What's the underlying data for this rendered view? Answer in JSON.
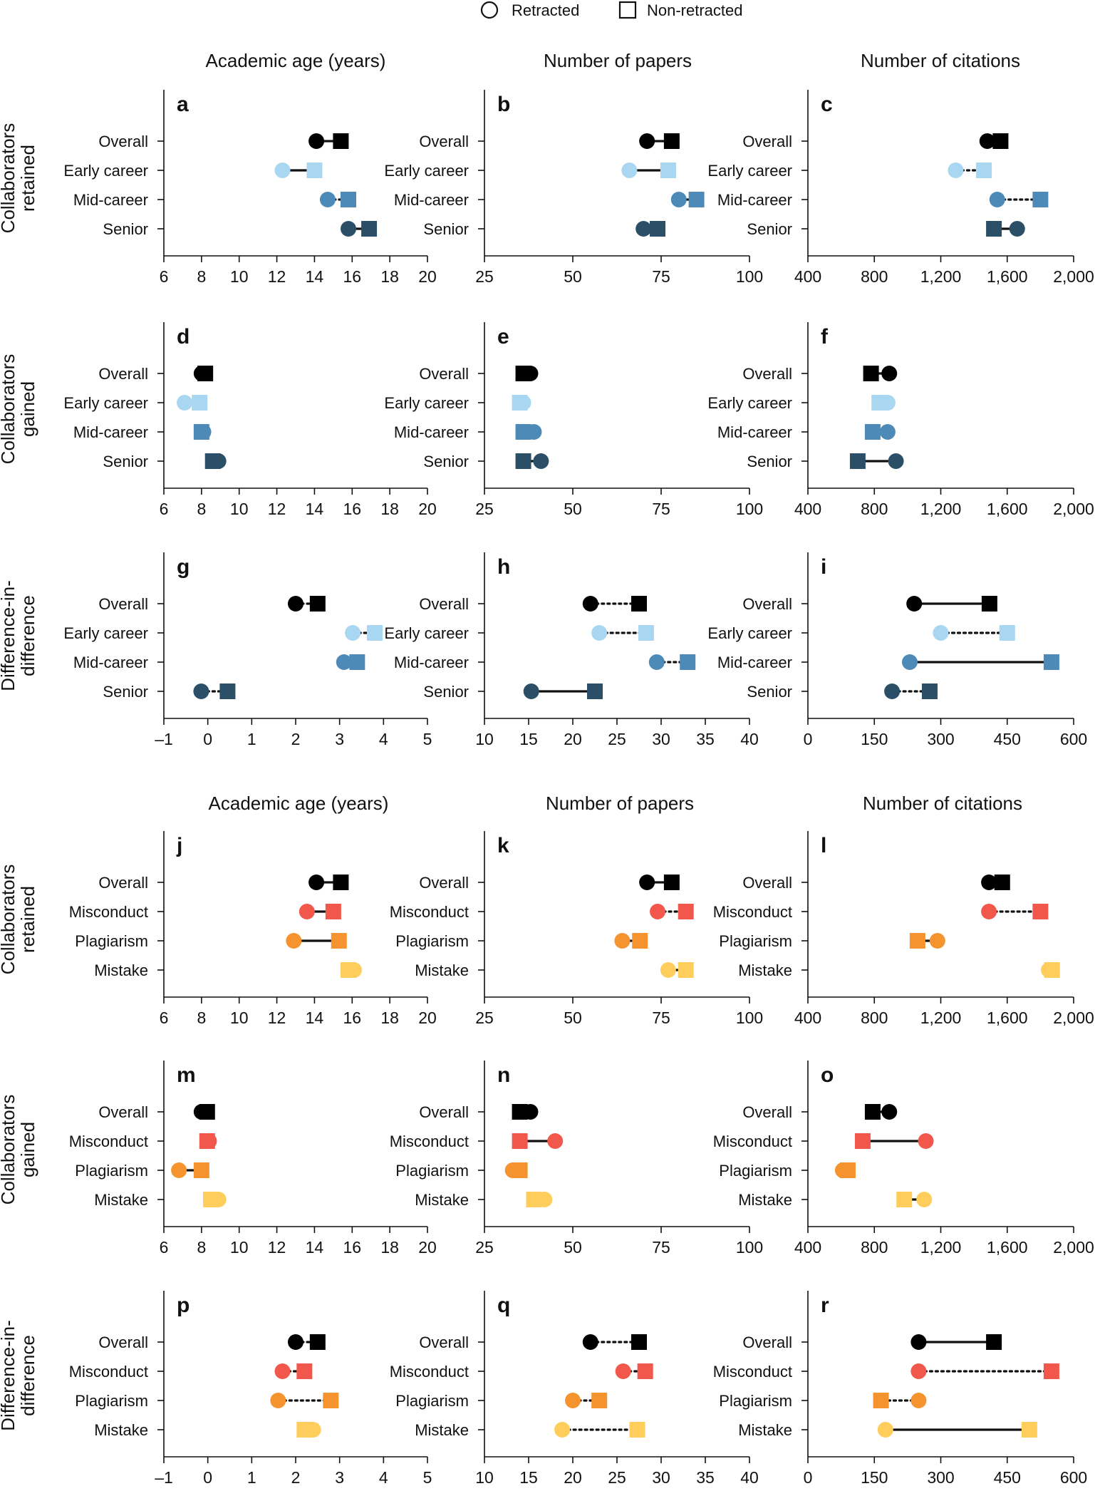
{
  "legend": {
    "retracted": "Retracted",
    "non_retracted": "Non-retracted"
  },
  "colors": {
    "overall": "#000000",
    "early_career": "#a9d6f0",
    "mid_career": "#4e8ab8",
    "senior": "#2a4f66",
    "misconduct": "#f2574b",
    "plagiarism": "#f5932f",
    "mistake": "#ffcd5c"
  },
  "column_titles": [
    "Academic age (years)",
    "Number of papers",
    "Number of citations"
  ],
  "row_titles": [
    [
      "Collaborators",
      "retained"
    ],
    [
      "Collaborators",
      "gained"
    ],
    [
      "Difference-in-",
      "difference"
    ],
    [
      "Collaborators",
      "retained"
    ],
    [
      "Collaborators",
      "gained"
    ],
    [
      "Difference-in-",
      "difference"
    ]
  ],
  "panel_labels": [
    "a",
    "b",
    "c",
    "d",
    "e",
    "f",
    "g",
    "h",
    "i",
    "j",
    "k",
    "l",
    "m",
    "n",
    "o",
    "p",
    "q",
    "r"
  ],
  "chart_data": [
    {
      "panel": "a",
      "type": "scatter",
      "categories": [
        "Overall",
        "Early career",
        "Mid-career",
        "Senior"
      ],
      "series": [
        {
          "name": "Retracted",
          "values": [
            14.1,
            12.3,
            14.7,
            15.8
          ]
        },
        {
          "name": "Non-retracted",
          "values": [
            15.4,
            14.0,
            15.8,
            16.9
          ]
        }
      ],
      "xlim": [
        6,
        20
      ],
      "xticks": [
        6,
        8,
        10,
        12,
        14,
        16,
        18,
        20
      ],
      "xticklabels": [
        "6",
        "8",
        "10",
        "12",
        "14",
        "16",
        "18",
        "20"
      ],
      "line_styles": [
        "solid",
        "solid",
        "dotted",
        "solid"
      ]
    },
    {
      "panel": "b",
      "type": "scatter",
      "categories": [
        "Overall",
        "Early career",
        "Mid-career",
        "Senior"
      ],
      "series": [
        {
          "name": "Retracted",
          "values": [
            71,
            66,
            80,
            70
          ]
        },
        {
          "name": "Non-retracted",
          "values": [
            78,
            77,
            85,
            74
          ]
        }
      ],
      "xlim": [
        25,
        100
      ],
      "xticks": [
        25,
        50,
        75,
        100
      ],
      "xticklabels": [
        "25",
        "50",
        "75",
        "100"
      ],
      "line_styles": [
        "solid",
        "solid",
        "solid",
        "solid"
      ]
    },
    {
      "panel": "c",
      "type": "scatter",
      "categories": [
        "Overall",
        "Early career",
        "Mid-career",
        "Senior"
      ],
      "series": [
        {
          "name": "Retracted",
          "values": [
            1480,
            1290,
            1540,
            1660
          ]
        },
        {
          "name": "Non-retracted",
          "values": [
            1560,
            1460,
            1800,
            1520
          ]
        }
      ],
      "xlim": [
        400,
        2000
      ],
      "xticks": [
        400,
        800,
        1200,
        1600,
        2000
      ],
      "xticklabels": [
        "400",
        "800",
        "1,200",
        "1,600",
        "2,000"
      ],
      "line_styles": [
        "solid",
        "dotted",
        "dotted",
        "solid"
      ]
    },
    {
      "panel": "d",
      "type": "scatter",
      "categories": [
        "Overall",
        "Early career",
        "Mid-career",
        "Senior"
      ],
      "series": [
        {
          "name": "Retracted",
          "values": [
            8.0,
            7.1,
            8.1,
            8.9
          ]
        },
        {
          "name": "Non-retracted",
          "values": [
            8.2,
            7.9,
            8.0,
            8.6
          ]
        }
      ],
      "xlim": [
        6,
        20
      ],
      "xticks": [
        6,
        8,
        10,
        12,
        14,
        16,
        18,
        20
      ],
      "xticklabels": [
        "6",
        "8",
        "10",
        "12",
        "14",
        "16",
        "18",
        "20"
      ],
      "line_styles": [
        "solid",
        "solid",
        "solid",
        "solid"
      ]
    },
    {
      "panel": "e",
      "type": "scatter",
      "categories": [
        "Overall",
        "Early career",
        "Mid-career",
        "Senior"
      ],
      "series": [
        {
          "name": "Retracted",
          "values": [
            38,
            36,
            39,
            41
          ]
        },
        {
          "name": "Non-retracted",
          "values": [
            36,
            35,
            36,
            36
          ]
        }
      ],
      "xlim": [
        25,
        100
      ],
      "xticks": [
        25,
        50,
        75,
        100
      ],
      "xticklabels": [
        "25",
        "50",
        "75",
        "100"
      ],
      "line_styles": [
        "solid",
        "solid",
        "solid",
        "solid"
      ]
    },
    {
      "panel": "f",
      "type": "scatter",
      "categories": [
        "Overall",
        "Early career",
        "Mid-career",
        "Senior"
      ],
      "series": [
        {
          "name": "Retracted",
          "values": [
            890,
            880,
            880,
            930
          ]
        },
        {
          "name": "Non-retracted",
          "values": [
            780,
            830,
            790,
            700
          ]
        }
      ],
      "xlim": [
        400,
        2000
      ],
      "xticks": [
        400,
        800,
        1200,
        1600,
        2000
      ],
      "xticklabels": [
        "400",
        "800",
        "1,200",
        "1,600",
        "2,000"
      ],
      "line_styles": [
        "solid",
        "solid",
        "solid",
        "solid"
      ]
    },
    {
      "panel": "g",
      "type": "scatter",
      "categories": [
        "Overall",
        "Early career",
        "Mid-career",
        "Senior"
      ],
      "series": [
        {
          "name": "Retracted",
          "values": [
            2.0,
            3.3,
            3.1,
            -0.15
          ]
        },
        {
          "name": "Non-retracted",
          "values": [
            2.5,
            3.8,
            3.4,
            0.45
          ]
        }
      ],
      "xlim": [
        -1,
        5
      ],
      "xticks": [
        -1,
        0,
        1,
        2,
        3,
        4,
        5
      ],
      "xticklabels": [
        "–1",
        "0",
        "1",
        "2",
        "3",
        "4",
        "5"
      ],
      "line_styles": [
        "dotted",
        "dotted",
        "solid",
        "dotted"
      ]
    },
    {
      "panel": "h",
      "type": "scatter",
      "categories": [
        "Overall",
        "Early career",
        "Mid-career",
        "Senior"
      ],
      "series": [
        {
          "name": "Retracted",
          "values": [
            22,
            23,
            29.5,
            15.3
          ]
        },
        {
          "name": "Non-retracted",
          "values": [
            27.5,
            28.3,
            33,
            22.5
          ]
        }
      ],
      "xlim": [
        10,
        40
      ],
      "xticks": [
        10,
        15,
        20,
        25,
        30,
        35,
        40
      ],
      "xticklabels": [
        "10",
        "15",
        "20",
        "25",
        "30",
        "35",
        "40"
      ],
      "line_styles": [
        "dotted",
        "dotted",
        "dotted",
        "solid"
      ]
    },
    {
      "panel": "i",
      "type": "scatter",
      "categories": [
        "Overall",
        "Early career",
        "Mid-career",
        "Senior"
      ],
      "series": [
        {
          "name": "Retracted",
          "values": [
            240,
            300,
            230,
            190
          ]
        },
        {
          "name": "Non-retracted",
          "values": [
            410,
            450,
            550,
            275
          ]
        }
      ],
      "xlim": [
        0,
        600
      ],
      "xticks": [
        0,
        150,
        300,
        450,
        600
      ],
      "xticklabels": [
        "0",
        "150",
        "300",
        "450",
        "600"
      ],
      "line_styles": [
        "solid",
        "dotted",
        "solid",
        "dotted"
      ]
    },
    {
      "panel": "j",
      "type": "scatter",
      "categories": [
        "Overall",
        "Misconduct",
        "Plagiarism",
        "Mistake"
      ],
      "series": [
        {
          "name": "Retracted",
          "values": [
            14.1,
            13.6,
            12.9,
            16.1
          ]
        },
        {
          "name": "Non-retracted",
          "values": [
            15.4,
            15.0,
            15.3,
            15.8
          ]
        }
      ],
      "xlim": [
        6,
        20
      ],
      "xticks": [
        6,
        8,
        10,
        12,
        14,
        16,
        18,
        20
      ],
      "xticklabels": [
        "6",
        "8",
        "10",
        "12",
        "14",
        "16",
        "18",
        "20"
      ],
      "line_styles": [
        "solid",
        "solid",
        "solid",
        "solid"
      ]
    },
    {
      "panel": "k",
      "type": "scatter",
      "categories": [
        "Overall",
        "Misconduct",
        "Plagiarism",
        "Mistake"
      ],
      "series": [
        {
          "name": "Retracted",
          "values": [
            71,
            74,
            64,
            77
          ]
        },
        {
          "name": "Non-retracted",
          "values": [
            78,
            82,
            69,
            82
          ]
        }
      ],
      "xlim": [
        25,
        100
      ],
      "xticks": [
        25,
        50,
        75,
        100
      ],
      "xticklabels": [
        "25",
        "50",
        "75",
        "100"
      ],
      "line_styles": [
        "solid",
        "dotted",
        "solid",
        "solid"
      ]
    },
    {
      "panel": "l",
      "type": "scatter",
      "categories": [
        "Overall",
        "Misconduct",
        "Plagiarism",
        "Mistake"
      ],
      "series": [
        {
          "name": "Retracted",
          "values": [
            1490,
            1490,
            1180,
            1850
          ]
        },
        {
          "name": "Non-retracted",
          "values": [
            1570,
            1800,
            1060,
            1870
          ]
        }
      ],
      "xlim": [
        400,
        2000
      ],
      "xticks": [
        400,
        800,
        1200,
        1600,
        2000
      ],
      "xticklabels": [
        "400",
        "800",
        "1,200",
        "1,600",
        "2,000"
      ],
      "line_styles": [
        "solid",
        "dotted",
        "solid",
        "solid"
      ]
    },
    {
      "panel": "m",
      "type": "scatter",
      "categories": [
        "Overall",
        "Misconduct",
        "Plagiarism",
        "Mistake"
      ],
      "series": [
        {
          "name": "Retracted",
          "values": [
            8.0,
            8.4,
            6.8,
            8.9
          ]
        },
        {
          "name": "Non-retracted",
          "values": [
            8.3,
            8.3,
            8.0,
            8.5
          ]
        }
      ],
      "xlim": [
        6,
        20
      ],
      "xticks": [
        6,
        8,
        10,
        12,
        14,
        16,
        18,
        20
      ],
      "xticklabels": [
        "6",
        "8",
        "10",
        "12",
        "14",
        "16",
        "18",
        "20"
      ],
      "line_styles": [
        "solid",
        "solid",
        "solid",
        "solid"
      ]
    },
    {
      "panel": "n",
      "type": "scatter",
      "categories": [
        "Overall",
        "Misconduct",
        "Plagiarism",
        "Mistake"
      ],
      "series": [
        {
          "name": "Retracted",
          "values": [
            38,
            45,
            33,
            42
          ]
        },
        {
          "name": "Non-retracted",
          "values": [
            35,
            35,
            35,
            39
          ]
        }
      ],
      "xlim": [
        25,
        100
      ],
      "xticks": [
        25,
        50,
        75,
        100
      ],
      "xticklabels": [
        "25",
        "50",
        "75",
        "100"
      ],
      "line_styles": [
        "solid",
        "solid",
        "solid",
        "solid"
      ]
    },
    {
      "panel": "o",
      "type": "scatter",
      "categories": [
        "Overall",
        "Misconduct",
        "Plagiarism",
        "Mistake"
      ],
      "series": [
        {
          "name": "Retracted",
          "values": [
            890,
            1110,
            610,
            1100
          ]
        },
        {
          "name": "Non-retracted",
          "values": [
            790,
            730,
            640,
            980
          ]
        }
      ],
      "xlim": [
        400,
        2000
      ],
      "xticks": [
        400,
        800,
        1200,
        1600,
        2000
      ],
      "xticklabels": [
        "400",
        "800",
        "1,200",
        "1,600",
        "2,000"
      ],
      "line_styles": [
        "solid",
        "solid",
        "solid",
        "solid"
      ]
    },
    {
      "panel": "p",
      "type": "scatter",
      "categories": [
        "Overall",
        "Misconduct",
        "Plagiarism",
        "Mistake"
      ],
      "series": [
        {
          "name": "Retracted",
          "values": [
            2.0,
            1.7,
            1.6,
            2.4
          ]
        },
        {
          "name": "Non-retracted",
          "values": [
            2.5,
            2.2,
            2.8,
            2.2
          ]
        }
      ],
      "xlim": [
        -1,
        5
      ],
      "xticks": [
        -1,
        0,
        1,
        2,
        3,
        4,
        5
      ],
      "xticklabels": [
        "–1",
        "0",
        "1",
        "2",
        "3",
        "4",
        "5"
      ],
      "line_styles": [
        "dotted",
        "dotted",
        "dotted",
        "solid"
      ]
    },
    {
      "panel": "q",
      "type": "scatter",
      "categories": [
        "Overall",
        "Misconduct",
        "Plagiarism",
        "Mistake"
      ],
      "series": [
        {
          "name": "Retracted",
          "values": [
            22,
            25.7,
            20,
            18.8
          ]
        },
        {
          "name": "Non-retracted",
          "values": [
            27.5,
            28.2,
            23,
            27.3
          ]
        }
      ],
      "xlim": [
        10,
        40
      ],
      "xticks": [
        10,
        15,
        20,
        25,
        30,
        35,
        40
      ],
      "xticklabels": [
        "10",
        "15",
        "20",
        "25",
        "30",
        "35",
        "40"
      ],
      "line_styles": [
        "dotted",
        "dotted",
        "dotted",
        "dotted"
      ]
    },
    {
      "panel": "r",
      "type": "scatter",
      "categories": [
        "Overall",
        "Misconduct",
        "Plagiarism",
        "Mistake"
      ],
      "series": [
        {
          "name": "Retracted",
          "values": [
            250,
            250,
            250,
            175
          ]
        },
        {
          "name": "Non-retracted",
          "values": [
            420,
            550,
            165,
            500
          ]
        }
      ],
      "xlim": [
        0,
        600
      ],
      "xticks": [
        0,
        150,
        300,
        450,
        600
      ],
      "xticklabels": [
        "0",
        "150",
        "300",
        "450",
        "600"
      ],
      "line_styles": [
        "solid",
        "dotted",
        "dotted",
        "solid"
      ]
    }
  ]
}
